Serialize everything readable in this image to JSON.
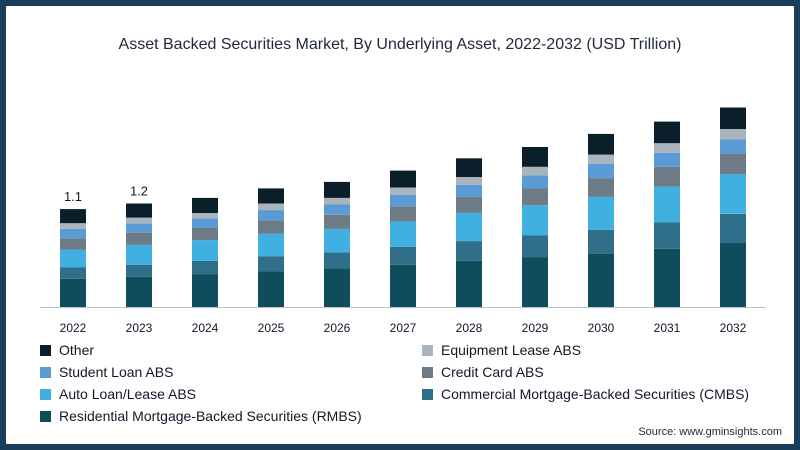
{
  "chart_data": {
    "type": "bar",
    "stacked": true,
    "title": "Asset Backed Securities Market, By Underlying Asset, 2022-2032 (USD Trillion)",
    "categories": [
      "2022",
      "2023",
      "2024",
      "2025",
      "2026",
      "2027",
      "2028",
      "2029",
      "2030",
      "2031",
      "2032"
    ],
    "series": [
      {
        "name": "Residential Mortgage-Backed Securities (RMBS)",
        "color": "#0f4c5c",
        "values": [
          0.3,
          0.32,
          0.35,
          0.38,
          0.41,
          0.45,
          0.49,
          0.53,
          0.57,
          0.62,
          0.68
        ]
      },
      {
        "name": "Commercial Mortgage-Backed Securities (CMBS)",
        "color": "#2f6f8a",
        "values": [
          0.12,
          0.13,
          0.14,
          0.16,
          0.17,
          0.19,
          0.21,
          0.23,
          0.25,
          0.28,
          0.31
        ]
      },
      {
        "name": "Auto Loan/Lease ABS",
        "color": "#3fb0e0",
        "values": [
          0.19,
          0.21,
          0.22,
          0.24,
          0.25,
          0.27,
          0.3,
          0.32,
          0.35,
          0.38,
          0.42
        ]
      },
      {
        "name": "Credit Card ABS",
        "color": "#6d7b86",
        "values": [
          0.12,
          0.13,
          0.13,
          0.14,
          0.15,
          0.16,
          0.17,
          0.18,
          0.2,
          0.21,
          0.22
        ]
      },
      {
        "name": "Student Loan ABS",
        "color": "#5b9bd5",
        "values": [
          0.1,
          0.1,
          0.1,
          0.11,
          0.11,
          0.12,
          0.13,
          0.14,
          0.15,
          0.15,
          0.15
        ]
      },
      {
        "name": "Equipment Lease ABS",
        "color": "#a9b4bd",
        "values": [
          0.06,
          0.06,
          0.06,
          0.07,
          0.07,
          0.08,
          0.08,
          0.09,
          0.1,
          0.1,
          0.11
        ]
      },
      {
        "name": "Other",
        "color": "#0b1f2a",
        "values": [
          0.15,
          0.15,
          0.16,
          0.16,
          0.17,
          0.18,
          0.2,
          0.21,
          0.22,
          0.23,
          0.23
        ]
      }
    ],
    "data_labels": [
      "1.1",
      "1.2",
      "",
      "",
      "",
      "",
      "",
      "",
      "",
      "",
      ""
    ],
    "ylim": [
      0,
      2.2
    ],
    "grid": false,
    "legend": "bottom",
    "legend_order": [
      "Other",
      "Equipment Lease ABS",
      "Student Loan ABS",
      "Credit Card ABS",
      "Auto Loan/Lease ABS",
      "Commercial Mortgage-Backed Securities (CMBS)",
      "Residential Mortgage-Backed Securities (RMBS)"
    ],
    "axis_color": "#b8c2ca"
  },
  "source": "Source: www.gminsights.com",
  "frame_color": "#1a3f5c"
}
